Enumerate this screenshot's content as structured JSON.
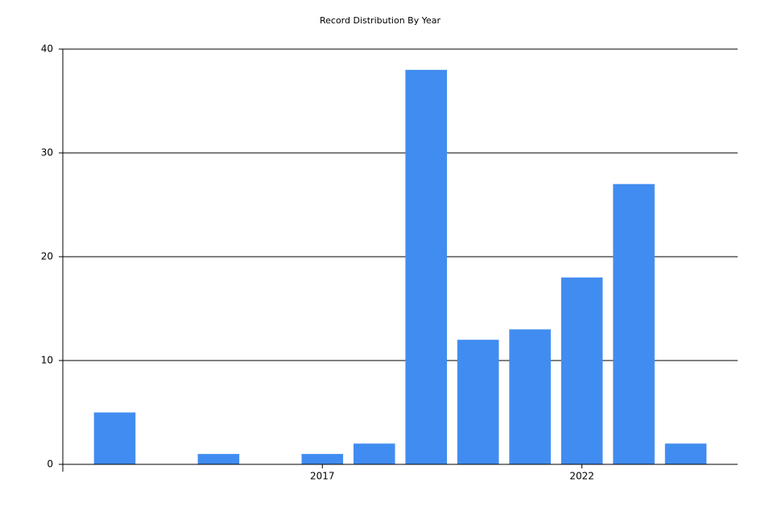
{
  "chart_data": {
    "type": "bar",
    "title": "Record Distribution By Year",
    "x": [
      2013,
      2015,
      2017,
      2018,
      2019,
      2020,
      2021,
      2022,
      2023,
      2024
    ],
    "values": [
      5,
      1,
      1,
      2,
      38,
      12,
      13,
      18,
      27,
      2
    ],
    "color": "#418cf0",
    "xlim": [
      2012,
      2025
    ],
    "xticks": [
      2017,
      2022
    ],
    "ylim": [
      0,
      40
    ],
    "yticks": [
      0,
      10,
      20,
      30,
      40
    ],
    "grid": true
  }
}
